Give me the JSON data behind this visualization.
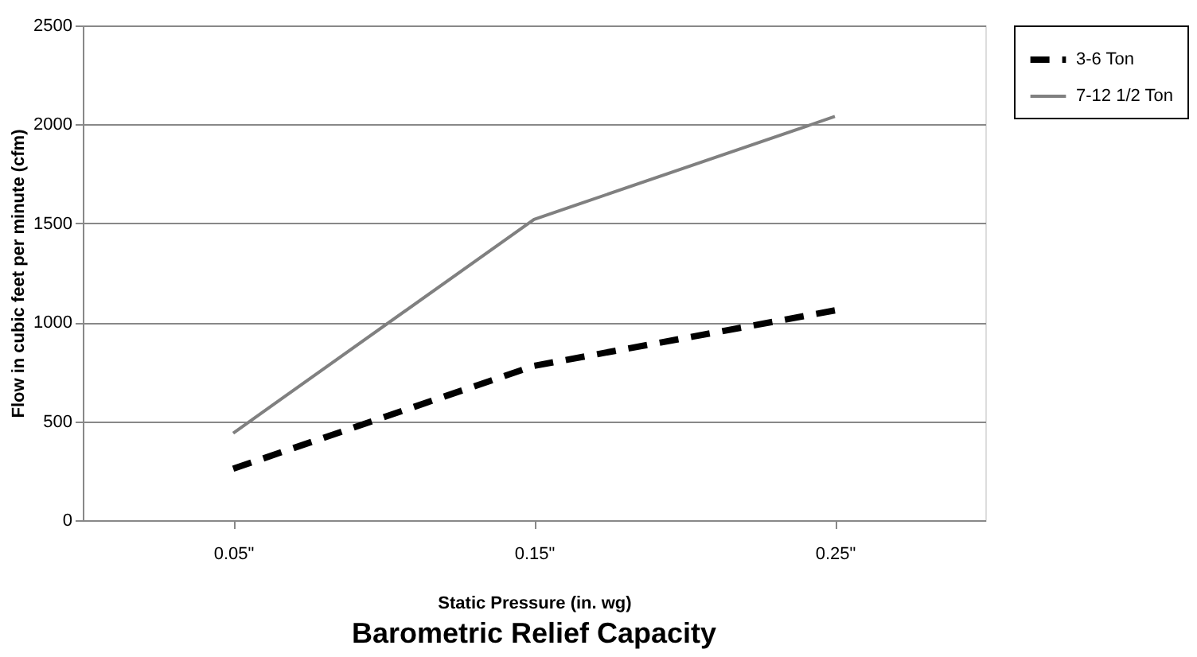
{
  "chart_data": {
    "type": "line",
    "title": "Barometric Relief Capacity",
    "xlabel": "Static Pressure (in. wg)",
    "ylabel": "Flow in cubic feet per minute (cfm)",
    "categories": [
      "0.05\"",
      "0.15\"",
      "0.25\""
    ],
    "series": [
      {
        "name": "3-6 Ton",
        "color": "#000000",
        "values": [
          260,
          780,
          1060
        ],
        "line_style": "dashed"
      },
      {
        "name": "7-12 1/2 Ton",
        "color": "#808080",
        "values": [
          440,
          1520,
          2040
        ],
        "line_style": "solid"
      }
    ],
    "ylim": [
      0,
      2500
    ],
    "yticks": [
      0,
      500,
      1000,
      1500,
      2000,
      2500
    ],
    "grid": "y",
    "legend": "right",
    "marker": "none"
  }
}
